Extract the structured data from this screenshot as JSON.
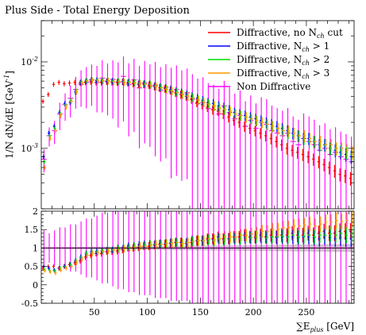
{
  "chart_data": {
    "type": "scatter",
    "title": "Plus Side - Total Energy Deposition",
    "xlabel": "∑E_plus [GeV]",
    "ylabel": "1/N dN/dE [GeV^-1]",
    "xlim": [
      0,
      295
    ],
    "log_y": true,
    "ylim_main": [
      0.0002,
      0.03
    ],
    "ylim_ratio": [
      -0.5,
      2.0
    ],
    "grid": false,
    "legend_position": "top-right",
    "x_ticks": [
      50,
      100,
      150,
      200,
      250
    ],
    "main_y_ticks": [
      {
        "value": 0.001,
        "label": "10^-3"
      },
      {
        "value": 0.01,
        "label": "10^-2"
      }
    ],
    "ratio_y_ticks": [
      -0.5,
      0,
      0.5,
      1,
      1.5,
      2
    ],
    "bin_width": 5,
    "x_centers": [
      2.5,
      7.5,
      12.5,
      17.5,
      22.5,
      27.5,
      32.5,
      37.5,
      42.5,
      47.5,
      52.5,
      57.5,
      62.5,
      67.5,
      72.5,
      77.5,
      82.5,
      87.5,
      92.5,
      97.5,
      102.5,
      107.5,
      112.5,
      117.5,
      122.5,
      127.5,
      132.5,
      137.5,
      142.5,
      147.5,
      152.5,
      157.5,
      162.5,
      167.5,
      172.5,
      177.5,
      182.5,
      187.5,
      192.5,
      197.5,
      202.5,
      207.5,
      212.5,
      217.5,
      222.5,
      227.5,
      232.5,
      237.5,
      242.5,
      247.5,
      252.5,
      257.5,
      262.5,
      267.5,
      272.5,
      277.5,
      282.5,
      287.5,
      292.5
    ],
    "reference": {
      "name": "Non Diffractive",
      "color": "#ff00ff",
      "values": [
        0.00075,
        0.0014,
        0.0016,
        0.0025,
        0.0032,
        0.0038,
        0.0048,
        0.0055,
        0.0058,
        0.0062,
        0.0058,
        0.0065,
        0.006,
        0.0063,
        0.0058,
        0.0068,
        0.0055,
        0.0062,
        0.005,
        0.0057,
        0.0052,
        0.0054,
        0.0047,
        0.0051,
        0.0045,
        0.0048,
        0.0042,
        0.0044,
        0.0037,
        0.0033,
        0.0034,
        0.0029,
        0.0028,
        0.0025,
        0.0031,
        0.0026,
        0.0022,
        0.0024,
        0.0018,
        0.0021,
        0.0017,
        0.002,
        0.0019,
        0.0016,
        0.0015,
        0.0014,
        0.0015,
        0.0012,
        0.0011,
        0.0013,
        0.0012,
        0.0011,
        0.00095,
        0.001,
        0.00085,
        0.0009,
        0.0008,
        0.00075,
        0.0007
      ],
      "rel_errors": [
        0.3,
        0.25,
        0.3,
        0.35,
        0.35,
        0.4,
        0.4,
        0.45,
        0.5,
        0.5,
        0.55,
        0.6,
        0.6,
        0.65,
        0.7,
        0.7,
        0.75,
        0.75,
        0.8,
        0.8,
        0.8,
        0.85,
        0.85,
        0.85,
        0.9,
        0.9,
        0.9,
        0.9,
        0.95,
        0.95,
        0.95,
        0.95,
        0.95,
        0.95,
        0.95,
        0.95,
        0.95,
        0.95,
        0.95,
        0.95,
        0.95,
        0.95,
        0.95,
        0.95,
        0.95,
        0.95,
        0.95,
        0.95,
        0.95,
        0.95,
        0.95,
        0.95,
        0.95,
        0.95,
        0.95,
        0.95,
        0.95,
        0.95,
        0.95
      ]
    },
    "series": [
      {
        "name": "Diffractive, no N_ch cut",
        "color": "#ff0000",
        "values": [
          0.0035,
          0.0042,
          0.0055,
          0.0058,
          0.0056,
          0.0057,
          0.0058,
          0.0057,
          0.0058,
          0.0059,
          0.0058,
          0.0058,
          0.0059,
          0.0058,
          0.0058,
          0.0059,
          0.0057,
          0.0056,
          0.0055,
          0.0055,
          0.0054,
          0.0052,
          0.005,
          0.0049,
          0.0047,
          0.0044,
          0.0042,
          0.004,
          0.0037,
          0.0034,
          0.0032,
          0.003,
          0.0028,
          0.0027,
          0.0025,
          0.0023,
          0.0021,
          0.002,
          0.0018,
          0.0017,
          0.0016,
          0.0015,
          0.0014,
          0.0013,
          0.0012,
          0.0011,
          0.001,
          0.00095,
          0.0009,
          0.00085,
          0.0008,
          0.00075,
          0.0007,
          0.00065,
          0.0006,
          0.00055,
          0.0005,
          0.00048,
          0.00045
        ],
        "ratio": [
          0.45,
          0.5,
          0.5,
          0.45,
          0.5,
          0.55,
          0.6,
          0.65,
          0.75,
          0.8,
          0.85,
          0.85,
          0.9,
          0.9,
          0.92,
          0.95,
          1.0,
          1.0,
          1.02,
          1.05,
          1.05,
          1.08,
          1.1,
          1.1,
          1.12,
          1.15,
          1.15,
          1.12,
          1.15,
          1.2,
          1.2,
          1.25,
          1.25,
          1.3,
          1.25,
          1.25,
          1.3,
          1.3,
          1.35,
          1.3,
          1.3,
          1.35,
          1.3,
          1.35,
          1.3,
          1.35,
          1.35,
          1.4,
          1.35,
          1.35,
          1.4,
          1.35,
          1.4,
          1.45,
          1.4,
          1.4,
          1.45,
          1.45,
          1.45
        ]
      },
      {
        "name": "Diffractive, N_ch > 1",
        "color": "#0000ff",
        "values": [
          0.0008,
          0.0015,
          0.0018,
          0.0026,
          0.0033,
          0.0034,
          0.0045,
          0.0058,
          0.006,
          0.0062,
          0.0061,
          0.006,
          0.006,
          0.006,
          0.0059,
          0.0059,
          0.0058,
          0.0058,
          0.0057,
          0.0056,
          0.0055,
          0.0053,
          0.0051,
          0.005,
          0.0048,
          0.0046,
          0.0044,
          0.0042,
          0.004,
          0.0038,
          0.0036,
          0.0034,
          0.0033,
          0.0031,
          0.003,
          0.0028,
          0.0026,
          0.0025,
          0.0024,
          0.0023,
          0.0022,
          0.0021,
          0.002,
          0.0019,
          0.0018,
          0.0017,
          0.0016,
          0.0015,
          0.0014,
          0.0013,
          0.0013,
          0.0012,
          0.0011,
          0.0011,
          0.001,
          0.00095,
          0.0009,
          0.00085,
          0.0008
        ],
        "ratio": [
          0.5,
          0.45,
          0.4,
          0.45,
          0.5,
          0.55,
          0.65,
          0.75,
          0.85,
          0.9,
          0.9,
          0.92,
          0.95,
          0.95,
          1.0,
          1.0,
          1.05,
          1.05,
          1.08,
          1.1,
          1.1,
          1.1,
          1.12,
          1.12,
          1.15,
          1.15,
          1.15,
          1.15,
          1.2,
          1.2,
          1.2,
          1.22,
          1.22,
          1.25,
          1.22,
          1.25,
          1.25,
          1.25,
          1.28,
          1.28,
          1.28,
          1.3,
          1.3,
          1.3,
          1.28,
          1.3,
          1.3,
          1.3,
          1.28,
          1.3,
          1.3,
          1.28,
          1.25,
          1.3,
          1.28,
          1.25,
          1.28,
          1.25,
          1.25
        ]
      },
      {
        "name": "Diffractive, N_ch > 2",
        "color": "#00dd00",
        "values": [
          0.0007,
          0.0014,
          0.0017,
          0.0025,
          0.0032,
          0.0036,
          0.0046,
          0.0059,
          0.0061,
          0.0062,
          0.0062,
          0.0061,
          0.0061,
          0.006,
          0.006,
          0.0059,
          0.0059,
          0.0058,
          0.0057,
          0.0056,
          0.0055,
          0.0053,
          0.0051,
          0.0049,
          0.0047,
          0.0045,
          0.0043,
          0.0041,
          0.0039,
          0.0037,
          0.0035,
          0.0033,
          0.0031,
          0.003,
          0.0028,
          0.0027,
          0.0025,
          0.0024,
          0.0023,
          0.0022,
          0.0021,
          0.002,
          0.0019,
          0.0018,
          0.0017,
          0.0016,
          0.0015,
          0.0014,
          0.0014,
          0.0013,
          0.0012,
          0.0012,
          0.0011,
          0.0011,
          0.001,
          0.00098,
          0.00095,
          0.0009,
          0.00085
        ],
        "ratio": [
          0.42,
          0.4,
          0.38,
          0.45,
          0.5,
          0.55,
          0.65,
          0.75,
          0.85,
          0.88,
          0.9,
          0.92,
          0.95,
          0.95,
          0.98,
          1.0,
          1.02,
          1.05,
          1.05,
          1.08,
          1.1,
          1.1,
          1.1,
          1.12,
          1.15,
          1.15,
          1.12,
          1.15,
          1.18,
          1.2,
          1.2,
          1.22,
          1.2,
          1.25,
          1.22,
          1.25,
          1.25,
          1.25,
          1.28,
          1.28,
          1.3,
          1.3,
          1.28,
          1.3,
          1.3,
          1.32,
          1.3,
          1.35,
          1.3,
          1.32,
          1.35,
          1.3,
          1.35,
          1.35,
          1.38,
          1.35,
          1.4,
          1.35,
          1.38
        ]
      },
      {
        "name": "Diffractive, N_ch > 3",
        "color": "#ff9900",
        "values": [
          0.0006,
          0.0013,
          0.0016,
          0.0024,
          0.003,
          0.0035,
          0.0045,
          0.0057,
          0.006,
          0.0061,
          0.0061,
          0.006,
          0.006,
          0.0059,
          0.0059,
          0.0058,
          0.0058,
          0.0057,
          0.0056,
          0.0055,
          0.0054,
          0.0052,
          0.005,
          0.0048,
          0.0046,
          0.0044,
          0.0042,
          0.004,
          0.0038,
          0.0036,
          0.0034,
          0.0032,
          0.0031,
          0.0029,
          0.0028,
          0.0027,
          0.0025,
          0.0024,
          0.0023,
          0.0022,
          0.0021,
          0.002,
          0.0019,
          0.0018,
          0.0017,
          0.0016,
          0.0016,
          0.0015,
          0.0014,
          0.0014,
          0.0013,
          0.0012,
          0.0012,
          0.0011,
          0.0011,
          0.001,
          0.001,
          0.00095,
          0.0009
        ],
        "ratio": [
          0.38,
          0.35,
          0.32,
          0.4,
          0.45,
          0.5,
          0.6,
          0.7,
          0.8,
          0.85,
          0.88,
          0.9,
          0.92,
          0.95,
          0.95,
          0.98,
          1.0,
          1.02,
          1.05,
          1.05,
          1.08,
          1.1,
          1.1,
          1.12,
          1.12,
          1.15,
          1.12,
          1.15,
          1.18,
          1.2,
          1.2,
          1.25,
          1.22,
          1.25,
          1.3,
          1.3,
          1.3,
          1.35,
          1.35,
          1.38,
          1.4,
          1.45,
          1.45,
          1.5,
          1.5,
          1.55,
          1.55,
          1.6,
          1.6,
          1.62,
          1.65,
          1.6,
          1.65,
          1.7,
          1.7,
          1.75,
          1.72,
          1.75,
          1.8
        ]
      }
    ]
  }
}
